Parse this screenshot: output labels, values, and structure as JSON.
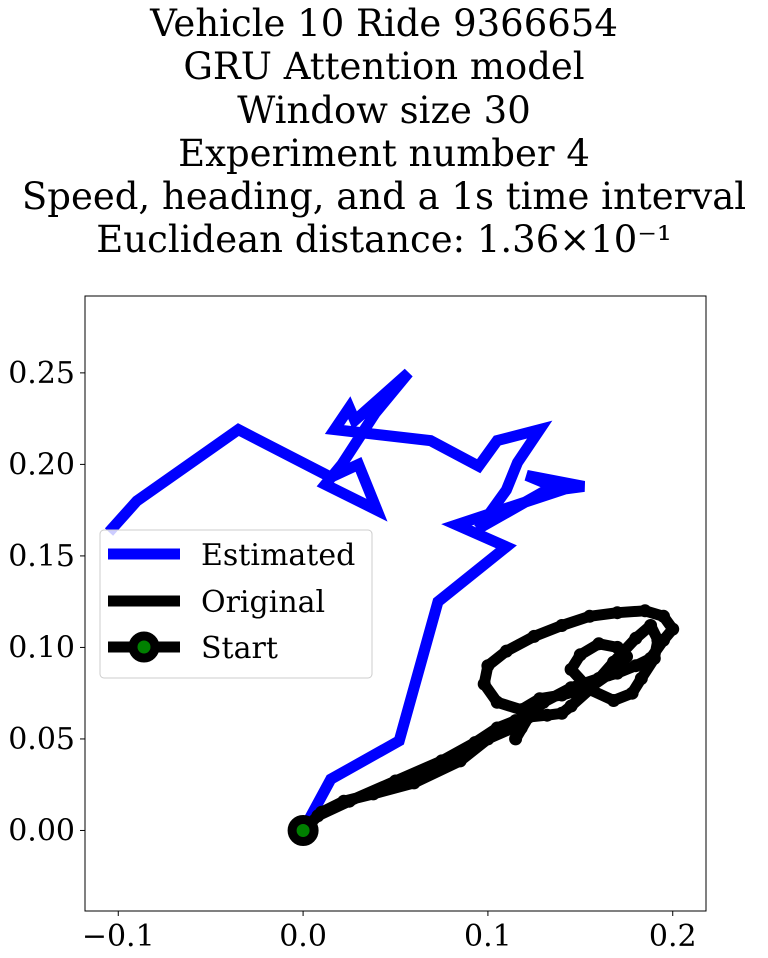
{
  "title_lines": [
    "Vehicle 10 Ride 9366654",
    "GRU Attention model",
    "Window size 30",
    "Experiment number 4",
    "Speed, heading, and a 1s time interval",
    "Euclidean distance: 1.36×10⁻¹"
  ],
  "chart_data": {
    "type": "line",
    "title": "Vehicle 10 Ride 9366654 / GRU Attention model / Window size 30 / Experiment number 4 / Speed, heading, and a 1s time interval / Euclidean distance: 1.36×10⁻¹",
    "xlabel": "",
    "ylabel": "",
    "xlim": [
      -0.118,
      0.218
    ],
    "ylim": [
      -0.044,
      0.292
    ],
    "xticks": [
      -0.1,
      0.0,
      0.1,
      0.2
    ],
    "xtick_labels": [
      "−0.1",
      "0.0",
      "0.1",
      "0.2"
    ],
    "yticks": [
      0.0,
      0.05,
      0.1,
      0.15,
      0.2,
      0.25
    ],
    "ytick_labels": [
      "0.00",
      "0.05",
      "0.10",
      "0.15",
      "0.20",
      "0.25"
    ],
    "grid": false,
    "legend_position": "center-left",
    "series": [
      {
        "name": "Estimated",
        "color": "#0000ff",
        "x": [
          0.0,
          0.015,
          0.052,
          0.073,
          0.11,
          0.083,
          0.14,
          0.121,
          0.152,
          0.13,
          0.095,
          0.11,
          0.116,
          0.128,
          0.105,
          0.095,
          0.069,
          0.017,
          0.025,
          0.028,
          0.057,
          0.039,
          0.021,
          0.012,
          0.04,
          0.03,
          0.015,
          -0.035,
          -0.09,
          -0.105
        ],
        "y": [
          0.0,
          0.028,
          0.049,
          0.125,
          0.155,
          0.167,
          0.186,
          0.194,
          0.188,
          0.185,
          0.165,
          0.186,
          0.201,
          0.219,
          0.213,
          0.199,
          0.213,
          0.219,
          0.231,
          0.224,
          0.25,
          0.228,
          0.2,
          0.189,
          0.175,
          0.2,
          0.193,
          0.219,
          0.18,
          0.163
        ]
      },
      {
        "name": "Original",
        "color": "#000000",
        "x": [
          0.0,
          0.01,
          0.022,
          0.038,
          0.06,
          0.085,
          0.1,
          0.118,
          0.13,
          0.145,
          0.16,
          0.17,
          0.18,
          0.188,
          0.195,
          0.2,
          0.195,
          0.185,
          0.17,
          0.155,
          0.14,
          0.125,
          0.11,
          0.1,
          0.098,
          0.105,
          0.118,
          0.128,
          0.14,
          0.155,
          0.165,
          0.172,
          0.175,
          0.17,
          0.16,
          0.15,
          0.145,
          0.155,
          0.168,
          0.178,
          0.183,
          0.19,
          0.192,
          0.188,
          0.18,
          0.168,
          0.155,
          0.145,
          0.14,
          0.132,
          0.122,
          0.115,
          0.118,
          0.122,
          0.115,
          0.105,
          0.093,
          0.075,
          0.05,
          0.025,
          0.008,
          0.0
        ],
        "y": [
          0.0,
          0.01,
          0.016,
          0.02,
          0.026,
          0.038,
          0.05,
          0.058,
          0.07,
          0.078,
          0.083,
          0.086,
          0.09,
          0.094,
          0.104,
          0.11,
          0.117,
          0.12,
          0.119,
          0.117,
          0.112,
          0.106,
          0.098,
          0.09,
          0.08,
          0.07,
          0.066,
          0.072,
          0.074,
          0.078,
          0.085,
          0.09,
          0.095,
          0.1,
          0.102,
          0.096,
          0.088,
          0.077,
          0.071,
          0.075,
          0.083,
          0.094,
          0.104,
          0.112,
          0.105,
          0.092,
          0.077,
          0.068,
          0.064,
          0.063,
          0.062,
          0.05,
          0.056,
          0.062,
          0.06,
          0.056,
          0.048,
          0.038,
          0.027,
          0.016,
          0.008,
          0.0
        ]
      },
      {
        "name": "Start",
        "color": "#008000",
        "x": [
          0.0
        ],
        "y": [
          0.0
        ]
      }
    ]
  },
  "legend": {
    "items": [
      {
        "label": "Estimated",
        "color": "#0000ff"
      },
      {
        "label": "Original",
        "color": "#000000"
      },
      {
        "label": "Start",
        "color": "#000000",
        "marker_face": "#008000"
      }
    ]
  }
}
